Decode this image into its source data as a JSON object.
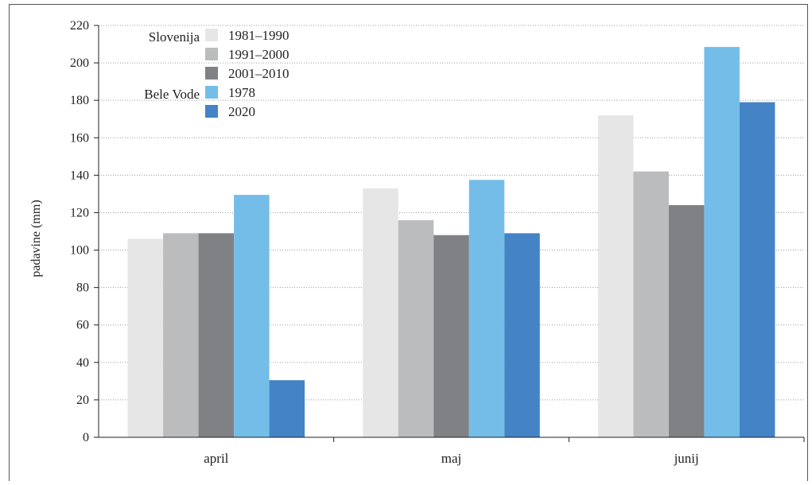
{
  "chart_data": {
    "type": "bar",
    "categories": [
      "april",
      "maj",
      "junij"
    ],
    "ylabel": "padavine (mm)",
    "xlabel": "",
    "ylim": [
      0,
      220
    ],
    "yticks": [
      0,
      20,
      40,
      60,
      80,
      100,
      120,
      140,
      160,
      180,
      200,
      220
    ],
    "grid": "horizontal, dotted",
    "legend_position": "top-left",
    "legend_groups": [
      {
        "label": "Slovenija",
        "series_indices": [
          0,
          1,
          2
        ]
      },
      {
        "label": "Bele Vode",
        "series_indices": [
          3,
          4
        ]
      }
    ],
    "series": [
      {
        "name": "1981–1990",
        "color": "#e6e6e7",
        "values": [
          106,
          133,
          172
        ]
      },
      {
        "name": "1991–2000",
        "color": "#bbbcbe",
        "values": [
          109,
          116,
          142
        ]
      },
      {
        "name": "2001–2010",
        "color": "#808184",
        "values": [
          109,
          108,
          124
        ]
      },
      {
        "name": "1978",
        "color": "#74bde8",
        "values": [
          129.5,
          137.5,
          208.5
        ]
      },
      {
        "name": "2020",
        "color": "#4383c6",
        "values": [
          30.5,
          109,
          179
        ]
      }
    ]
  }
}
